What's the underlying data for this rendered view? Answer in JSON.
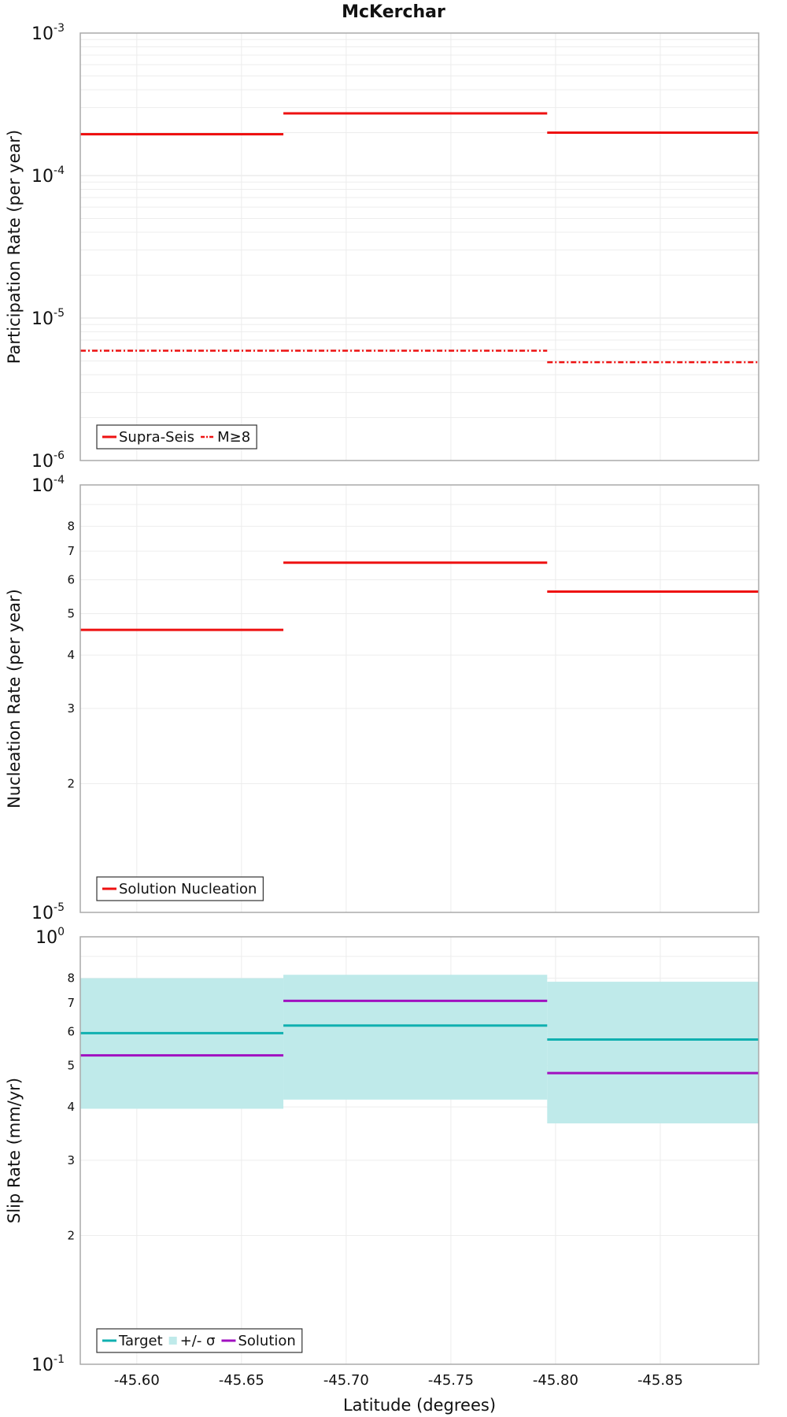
{
  "chart_data": {
    "type": "line",
    "title": "McKerchar",
    "xlabel": "Latitude (degrees)",
    "xlim": [
      -45.573,
      -45.897
    ],
    "x_ticks": [
      "-45.60",
      "-45.65",
      "-45.70",
      "-45.75",
      "-45.80",
      "-45.85"
    ],
    "x_tick_values": [
      -45.6,
      -45.65,
      -45.7,
      -45.75,
      -45.8,
      -45.85
    ],
    "sections": [
      {
        "start": -45.573,
        "end": -45.67
      },
      {
        "start": -45.67,
        "end": -45.796
      },
      {
        "start": -45.796,
        "end": -45.897
      }
    ],
    "panels": [
      {
        "id": "participation",
        "ylabel": "Participation Rate (per year)",
        "yscale": "log",
        "ylim": [
          1e-06,
          0.001
        ],
        "major_ticks": [
          {
            "base": "10",
            "exp": "-3",
            "value": 0.001
          },
          {
            "base": "10",
            "exp": "-4",
            "value": 0.0001
          },
          {
            "base": "10",
            "exp": "-5",
            "value": 1e-05
          },
          {
            "base": "10",
            "exp": "-6",
            "value": 1e-06
          }
        ],
        "minor_labels": [],
        "series": [
          {
            "name": "Supra-Seis",
            "color": "#ee1111",
            "style": "solid",
            "values": [
              0.000195,
              0.000273,
              0.0002
            ]
          },
          {
            "name": "M≥8",
            "color": "#ee1111",
            "style": "dashdot",
            "values": [
              5.9e-06,
              5.9e-06,
              4.9e-06
            ]
          }
        ],
        "legend": [
          {
            "label": "Supra-Seis",
            "type": "line",
            "style": "solid",
            "color": "#ee1111"
          },
          {
            "label": "M≥8",
            "type": "line",
            "style": "dashdot",
            "color": "#ee1111"
          }
        ]
      },
      {
        "id": "nucleation",
        "ylabel": "Nucleation Rate (per year)",
        "yscale": "log",
        "ylim": [
          1e-05,
          0.0001
        ],
        "major_ticks": [
          {
            "base": "10",
            "exp": "-4",
            "value": 0.0001
          },
          {
            "base": "10",
            "exp": "-5",
            "value": 1e-05
          }
        ],
        "minor_labels": [
          {
            "label": "8",
            "value": 8e-05
          },
          {
            "label": "7",
            "value": 7e-05
          },
          {
            "label": "6",
            "value": 6e-05
          },
          {
            "label": "5",
            "value": 5e-05
          },
          {
            "label": "4",
            "value": 4e-05
          },
          {
            "label": "3",
            "value": 3e-05
          },
          {
            "label": "2",
            "value": 2e-05
          }
        ],
        "series": [
          {
            "name": "Solution Nucleation",
            "color": "#ee1111",
            "style": "solid",
            "values": [
              4.58e-05,
              6.58e-05,
              5.63e-05
            ]
          }
        ],
        "legend": [
          {
            "label": "Solution Nucleation",
            "type": "line",
            "style": "solid",
            "color": "#ee1111"
          }
        ]
      },
      {
        "id": "slip",
        "ylabel": "Slip Rate (mm/yr)",
        "yscale": "log",
        "ylim": [
          0.1,
          1
        ],
        "major_ticks": [
          {
            "base": "10",
            "exp": "0",
            "value": 1
          },
          {
            "base": "10",
            "exp": "-1",
            "value": 0.1
          }
        ],
        "minor_labels": [
          {
            "label": "8",
            "value": 0.8
          },
          {
            "label": "7",
            "value": 0.7
          },
          {
            "label": "6",
            "value": 0.6
          },
          {
            "label": "5",
            "value": 0.5
          },
          {
            "label": "4",
            "value": 0.4
          },
          {
            "label": "3",
            "value": 0.3
          },
          {
            "label": "2",
            "value": 0.2
          }
        ],
        "bands": [
          {
            "name": "+/- σ",
            "color": "#bfeaea",
            "lower": [
              0.396,
              0.416,
              0.366
            ],
            "upper": [
              0.8,
              0.815,
              0.785
            ]
          }
        ],
        "series": [
          {
            "name": "Target",
            "color": "#10b0b0",
            "style": "solid",
            "values": [
              0.595,
              0.62,
              0.575
            ]
          },
          {
            "name": "Solution",
            "color": "#a010c0",
            "style": "solid",
            "values": [
              0.528,
              0.708,
              0.48
            ]
          }
        ],
        "legend": [
          {
            "label": "Target",
            "type": "line",
            "style": "solid",
            "color": "#10b0b0"
          },
          {
            "label": "+/- σ",
            "type": "box",
            "style": "fill",
            "color": "#bfeaea"
          },
          {
            "label": "Solution",
            "type": "line",
            "style": "solid",
            "color": "#a010c0"
          }
        ]
      }
    ]
  }
}
